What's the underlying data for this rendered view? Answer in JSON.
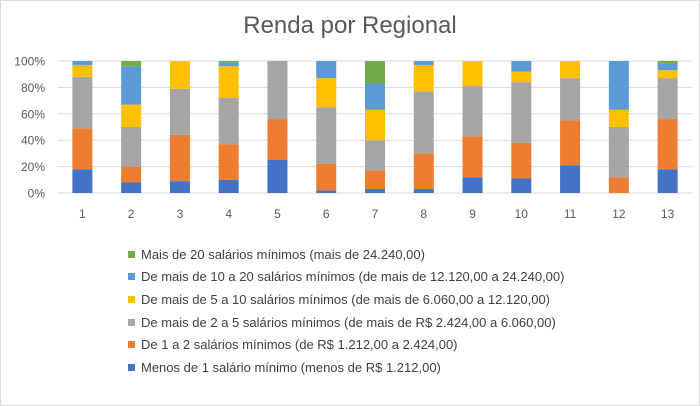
{
  "chart_data": {
    "type": "bar",
    "stacked": true,
    "percent": true,
    "title": "Renda por Regional",
    "categories": [
      "1",
      "2",
      "3",
      "4",
      "5",
      "6",
      "7",
      "8",
      "9",
      "10",
      "11",
      "12",
      "13"
    ],
    "y_ticks": [
      "0%",
      "20%",
      "40%",
      "60%",
      "80%",
      "100%"
    ],
    "ylim": [
      0,
      100
    ],
    "grid": true,
    "legend_position": "bottom",
    "series": [
      {
        "name": "Menos de 1 salário mínimo (menos de R$ 1.212,00)",
        "color": "#4472c4",
        "values": [
          18,
          8,
          9,
          10,
          25,
          2,
          3,
          3,
          12,
          11,
          21,
          0,
          18
        ]
      },
      {
        "name": "De 1 a 2 salários mínimos (de R$ 1.212,00 a 2.424,00)",
        "color": "#ed7d31",
        "values": [
          31,
          12,
          35,
          27,
          31,
          20,
          14,
          27,
          31,
          27,
          34,
          12,
          38
        ]
      },
      {
        "name": "De mais de 2 a 5 salários mínimos (de mais de R$ 2.424,00 a 6.060,00)",
        "color": "#a5a5a5",
        "values": [
          39,
          30,
          35,
          35,
          44,
          43,
          23,
          47,
          38,
          46,
          32,
          38,
          31
        ]
      },
      {
        "name": "De mais de 5 a 10 salários mínimos (de mais de 6.060,00 a 12.120,00)",
        "color": "#ffc000",
        "values": [
          9,
          17,
          21,
          24,
          0,
          22,
          23,
          20,
          19,
          8,
          13,
          13,
          6
        ]
      },
      {
        "name": "De mais de 10 a 20 salários mínimos (de mais de 12.120,00 a 24.240,00)",
        "color": "#5b9bd5",
        "values": [
          3,
          29,
          0,
          3,
          0,
          13,
          20,
          3,
          0,
          8,
          0,
          37,
          5
        ]
      },
      {
        "name": "Mais de 20 salários mínimos (mais de 24.240,00)",
        "color": "#70ad47",
        "values": [
          0,
          4,
          0,
          1,
          0,
          0,
          17,
          0,
          0,
          0,
          0,
          0,
          2
        ]
      }
    ]
  }
}
